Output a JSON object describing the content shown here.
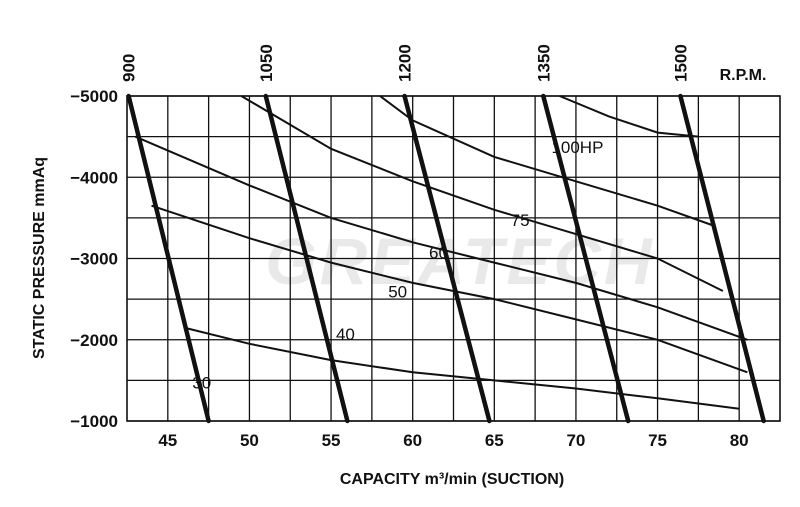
{
  "chart_data": {
    "type": "line",
    "title": "",
    "watermark": "GREATECH",
    "xlabel": "CAPACITY m³/min (SUCTION)",
    "ylabel": "STATIC PRESSURE mmAq",
    "rpm_label": "R.P.M.",
    "xlim": [
      42.5,
      82.5
    ],
    "ylim": [
      -1000,
      -5000
    ],
    "x_ticks": [
      45,
      50,
      55,
      60,
      65,
      70,
      75,
      80
    ],
    "y_ticks": [
      -5000,
      -4000,
      -3000,
      -2000,
      -1000
    ],
    "rpm_series": [
      {
        "name": "900",
        "points": [
          [
            42.6,
            -5000
          ],
          [
            47.5,
            -1000
          ]
        ]
      },
      {
        "name": "1050",
        "points": [
          [
            51.0,
            -5000
          ],
          [
            56.0,
            -1000
          ]
        ]
      },
      {
        "name": "1200",
        "points": [
          [
            59.5,
            -5000
          ],
          [
            64.7,
            -1000
          ]
        ]
      },
      {
        "name": "1350",
        "points": [
          [
            68.0,
            -5000
          ],
          [
            73.2,
            -1000
          ]
        ]
      },
      {
        "name": "1500",
        "points": [
          [
            76.4,
            -5000
          ],
          [
            81.5,
            -1000
          ]
        ]
      }
    ],
    "hp_series": [
      {
        "name": "30",
        "label_at": [
          46.5,
          -1400
        ],
        "points": [
          [
            46.0,
            -2150
          ],
          [
            50.0,
            -1950
          ],
          [
            55.0,
            -1750
          ],
          [
            60.0,
            -1600
          ],
          [
            65.0,
            -1500
          ],
          [
            70.0,
            -1400
          ],
          [
            75.0,
            -1280
          ],
          [
            80.0,
            -1150
          ]
        ]
      },
      {
        "name": "40",
        "label_at": [
          55.3,
          -2000
        ],
        "points": [
          [
            44.0,
            -3650
          ],
          [
            50.0,
            -3250
          ],
          [
            55.0,
            -2950
          ],
          [
            60.0,
            -2700
          ],
          [
            65.0,
            -2500
          ],
          [
            70.0,
            -2250
          ],
          [
            75.0,
            -2000
          ],
          [
            80.5,
            -1600
          ]
        ]
      },
      {
        "name": "50",
        "label_at": [
          58.5,
          -2520
        ],
        "points": [
          [
            43.0,
            -4500
          ],
          [
            50.0,
            -3900
          ],
          [
            55.0,
            -3500
          ],
          [
            60.0,
            -3200
          ],
          [
            65.0,
            -2950
          ],
          [
            70.0,
            -2700
          ],
          [
            75.0,
            -2400
          ],
          [
            80.5,
            -2000
          ]
        ]
      },
      {
        "name": "60",
        "label_at": [
          61.0,
          -3000
        ],
        "points": [
          [
            49.5,
            -5000
          ],
          [
            55.0,
            -4350
          ],
          [
            60.0,
            -3950
          ],
          [
            65.0,
            -3600
          ],
          [
            70.0,
            -3300
          ],
          [
            75.0,
            -3000
          ],
          [
            79.0,
            -2600
          ]
        ]
      },
      {
        "name": "75",
        "label_at": [
          66.0,
          -3400
        ],
        "points": [
          [
            58.0,
            -5000
          ],
          [
            60.0,
            -4700
          ],
          [
            65.0,
            -4250
          ],
          [
            70.0,
            -3950
          ],
          [
            75.0,
            -3650
          ],
          [
            78.5,
            -3400
          ]
        ]
      },
      {
        "name": "100HP",
        "label_at": [
          68.5,
          -4300
        ],
        "points": [
          [
            69.0,
            -5000
          ],
          [
            72.0,
            -4750
          ],
          [
            75.0,
            -4550
          ],
          [
            77.5,
            -4500
          ]
        ]
      }
    ]
  }
}
